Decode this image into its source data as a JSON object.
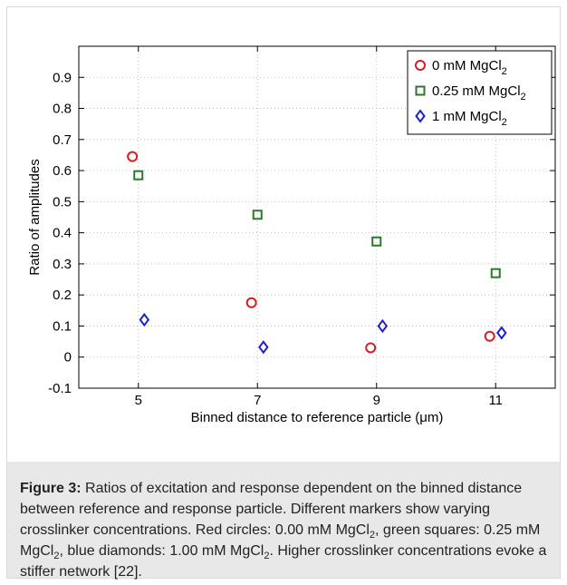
{
  "chart_data": {
    "type": "scatter",
    "xlabel": "Binned distance to reference particle (μm)",
    "ylabel": "Ratio of amplitudes",
    "xlim": [
      4,
      12
    ],
    "ylim": [
      -0.1,
      1.0
    ],
    "xticks": [
      5,
      7,
      9,
      11
    ],
    "yticks": [
      -0.1,
      0,
      0.1,
      0.2,
      0.3,
      0.4,
      0.5,
      0.6,
      0.7,
      0.8,
      0.9
    ],
    "grid": "dotted",
    "legend_position": "top-right",
    "series": [
      {
        "name": "0 mM MgCl2",
        "marker": "circle",
        "color": "#d42020",
        "x": [
          4.9,
          6.9,
          8.9,
          10.9
        ],
        "y": [
          0.645,
          0.175,
          0.03,
          0.067
        ]
      },
      {
        "name": "0.25 mM MgCl2",
        "marker": "square",
        "color": "#2a7a2a",
        "x": [
          5.0,
          7.0,
          9.0,
          11.0
        ],
        "y": [
          0.585,
          0.458,
          0.372,
          0.27
        ]
      },
      {
        "name": "1 mM MgCl2",
        "marker": "diamond",
        "color": "#1f1fd0",
        "x": [
          5.1,
          7.1,
          9.1,
          11.1
        ],
        "y": [
          0.12,
          0.032,
          0.1,
          0.078
        ]
      }
    ]
  },
  "legend": [
    {
      "base": "0 mM MgCl",
      "sub": "2"
    },
    {
      "base": "0.25 mM MgCl",
      "sub": "2"
    },
    {
      "base": "1 mM MgCl",
      "sub": "2"
    }
  ],
  "caption": {
    "label": "Figure 3:",
    "t1": " Ratios of excitation and response dependent on the binned distance between reference and response particle. Different markers show varying crosslinker concentrations. Red circles: 0.00 mM MgCl",
    "s1": "2",
    "t2": ", green squares: 0.25 mM MgCl",
    "s2": "2",
    "t3": ", blue diamonds: 1.00 mM MgCl",
    "s3": "2",
    "t4": ". Higher crosslinker concentrations evoke a stiffer network [22]."
  }
}
